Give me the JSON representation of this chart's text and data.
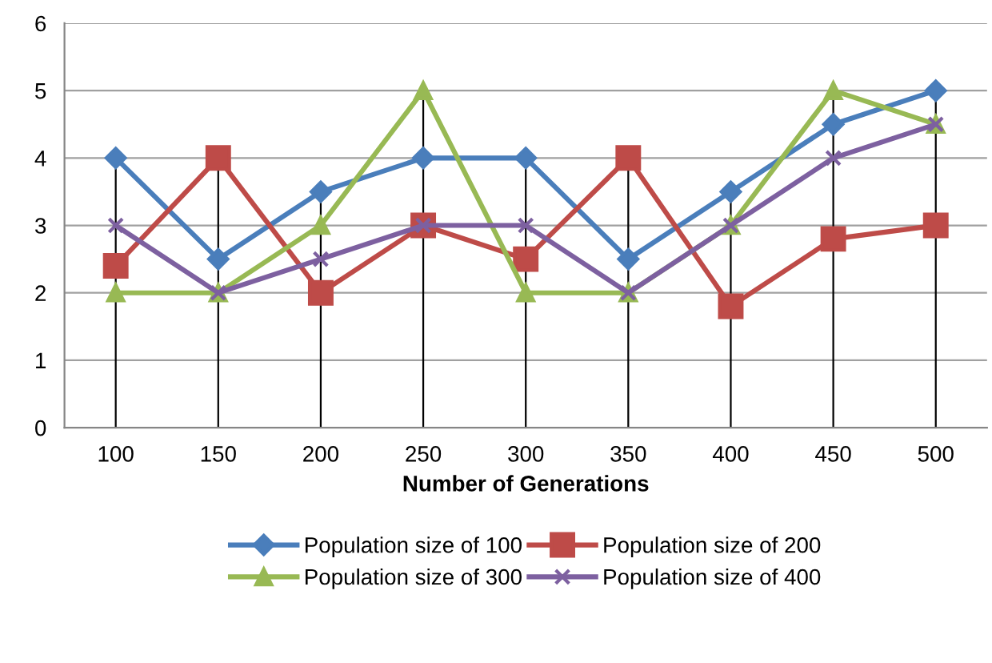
{
  "chart_data": {
    "type": "line",
    "xlabel": "Number of Generations",
    "categories": [
      "100",
      "150",
      "200",
      "250",
      "300",
      "350",
      "400",
      "450",
      "500"
    ],
    "series": [
      {
        "name": "Population size of 100",
        "color": "#4a7ebb",
        "marker": "diamond",
        "values": [
          4,
          2.5,
          3.5,
          4,
          4,
          2.5,
          3.5,
          4.5,
          5
        ]
      },
      {
        "name": "Population size of 200",
        "color": "#be4b48",
        "marker": "square",
        "values": [
          2.4,
          4,
          2,
          3,
          2.5,
          4,
          1.8,
          2.8,
          3
        ]
      },
      {
        "name": "Population size of 300",
        "color": "#98b954",
        "marker": "triangle",
        "values": [
          2,
          2,
          3,
          5,
          2,
          2,
          3,
          5,
          4.5
        ]
      },
      {
        "name": "Population size of 400",
        "color": "#7d60a0",
        "marker": "cross",
        "values": [
          3,
          2,
          2.5,
          3,
          3,
          2,
          3,
          4,
          4.5
        ]
      }
    ],
    "ref_lines": [
      {
        "axis": "x",
        "value": "100",
        "color": "#000000"
      },
      {
        "axis": "x",
        "value": "150",
        "color": "#000000"
      },
      {
        "axis": "x",
        "value": "200",
        "color": "#000000"
      },
      {
        "axis": "x",
        "value": "250",
        "color": "#000000"
      },
      {
        "axis": "x",
        "value": "300",
        "color": "#000000"
      },
      {
        "axis": "x",
        "value": "350",
        "color": "#000000"
      },
      {
        "axis": "x",
        "value": "400",
        "color": "#000000"
      },
      {
        "axis": "x",
        "value": "450",
        "color": "#000000"
      },
      {
        "axis": "x",
        "value": "500",
        "color": "#000000"
      }
    ],
    "ylim": [
      0,
      6
    ],
    "yticks": [
      0,
      1,
      2,
      3,
      4,
      5,
      6
    ],
    "grid": "y",
    "legend": "bottom"
  }
}
